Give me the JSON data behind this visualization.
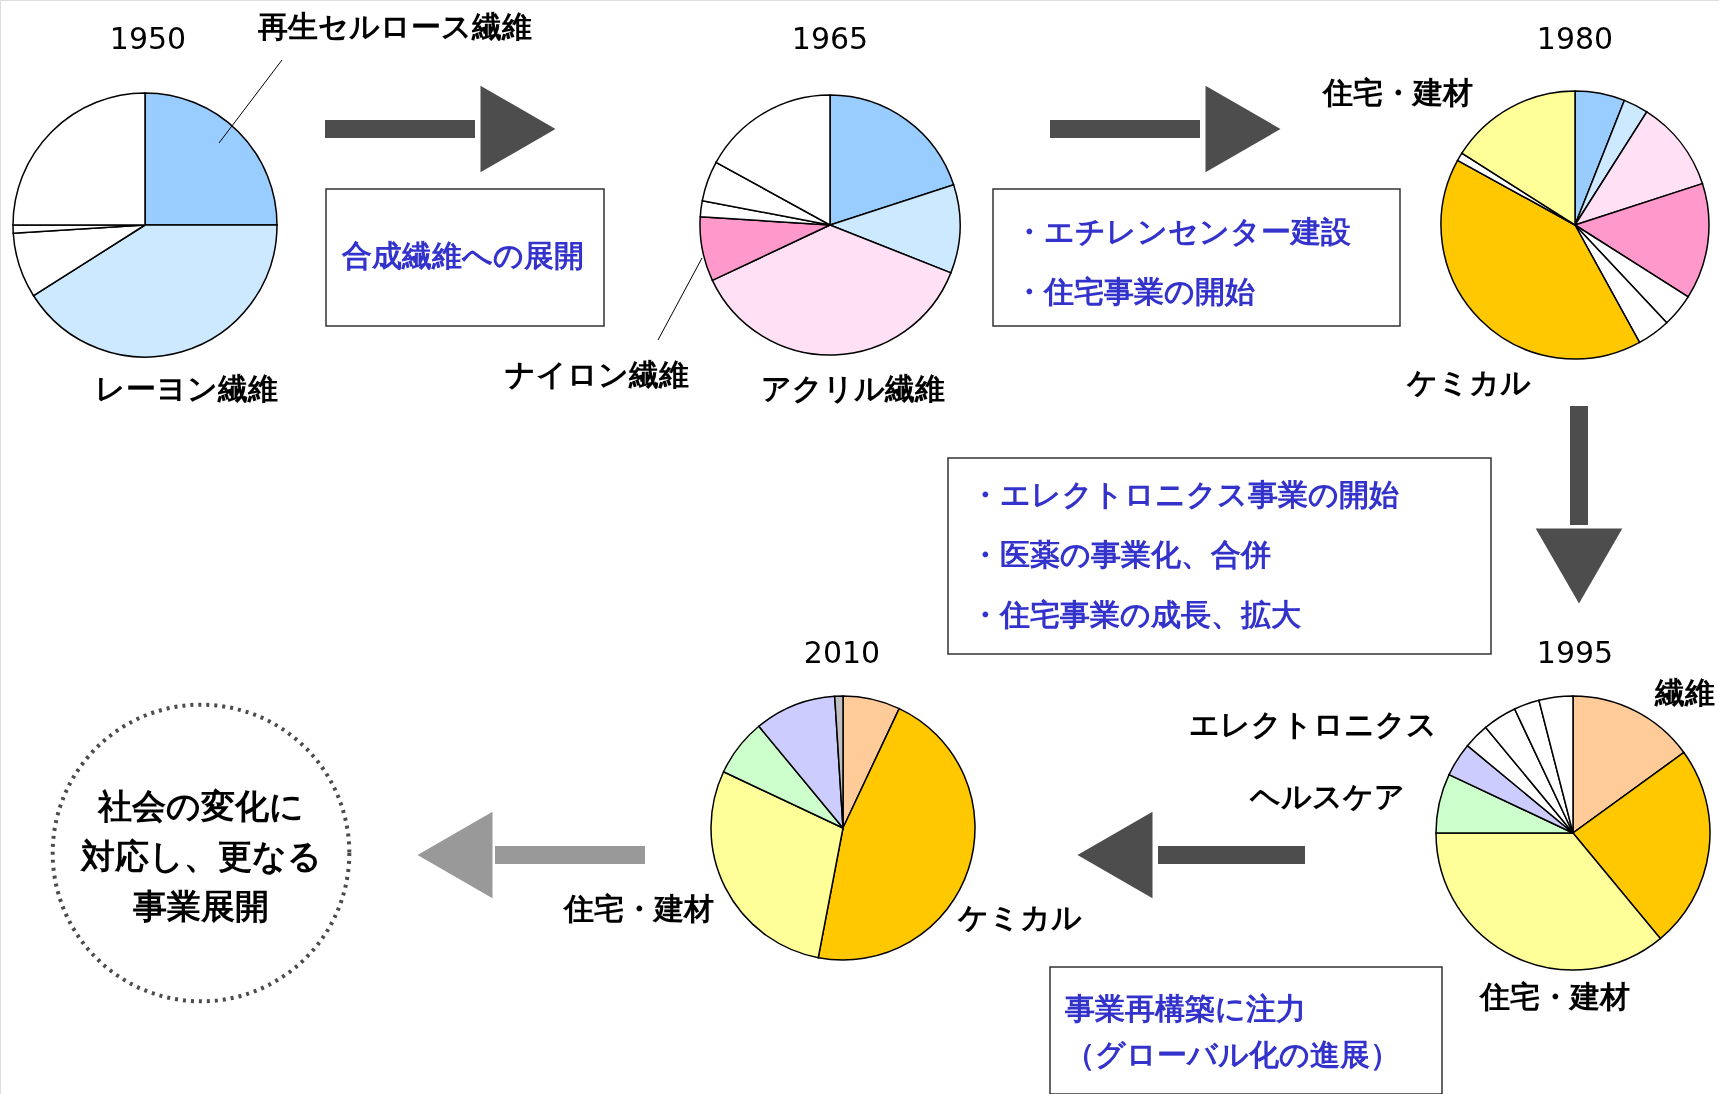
{
  "chart_data": [
    {
      "type": "pie",
      "title": "1950",
      "categories": [
        "再生セルロース繊維",
        "レーヨン繊維",
        null,
        null,
        null
      ],
      "values": [
        25,
        41,
        8,
        1,
        25
      ],
      "colors": [
        "#99ccff",
        "#cce9ff",
        "#ffffff",
        "#ffffff",
        "#ffffff"
      ],
      "annotations": [
        "合成繊維への展開"
      ]
    },
    {
      "type": "pie",
      "title": "1965",
      "categories": [
        null,
        null,
        "アクリル繊維",
        "ナイロン繊維",
        null,
        null,
        null
      ],
      "values": [
        20,
        11,
        37,
        8,
        2,
        5,
        17
      ],
      "colors": [
        "#99ccff",
        "#cce9ff",
        "#ffe0f5",
        "#ff99cc",
        "#ffffff",
        "#ffffff",
        "#ffffff"
      ],
      "annotations": [
        "・エチレンセンター建設",
        "・住宅事業の開始"
      ]
    },
    {
      "type": "pie",
      "title": "1980",
      "categories": [
        null,
        null,
        null,
        null,
        null,
        null,
        "ケミカル",
        null,
        "住宅・建材"
      ],
      "values": [
        6,
        3,
        11,
        14,
        4,
        4,
        41,
        1,
        16
      ],
      "colors": [
        "#99ccff",
        "#cce9ff",
        "#ffe0f5",
        "#ff99cc",
        "#ffffff",
        "#ffffff",
        "#ffc800",
        "#ffffff",
        "#ffff99"
      ],
      "annotations": [
        "・エレクトロニクス事業の開始",
        "・医薬の事業化、合併",
        "・住宅事業の成長、拡大"
      ]
    },
    {
      "type": "pie",
      "title": "1995",
      "categories": [
        "繊維",
        null,
        "住宅・建材",
        "ヘルスケア",
        "エレクトロニクス",
        null,
        null,
        null,
        null
      ],
      "values": [
        15,
        24,
        36,
        7,
        4,
        3,
        4,
        3,
        4
      ],
      "colors": [
        "#ffcc99",
        "#ffc800",
        "#ffff99",
        "#ccffcc",
        "#ccccff",
        "#ffffff",
        "#ffffff",
        "#ffffff",
        "#ffffff"
      ],
      "annotations": [
        "事業再構築に注力",
        "（グローバル化の進展）"
      ]
    },
    {
      "type": "pie",
      "title": "2010",
      "categories": [
        null,
        "ケミカル",
        "住宅・建材",
        null,
        null,
        null
      ],
      "values": [
        7,
        46,
        29,
        7,
        10,
        1
      ],
      "colors": [
        "#ffcc99",
        "#ffc800",
        "#ffff99",
        "#ccffcc",
        "#ccccff",
        "#c0c0c0"
      ],
      "annotations": [
        "社会の変化に",
        "対応し、更なる",
        "事業展開"
      ]
    }
  ]
}
